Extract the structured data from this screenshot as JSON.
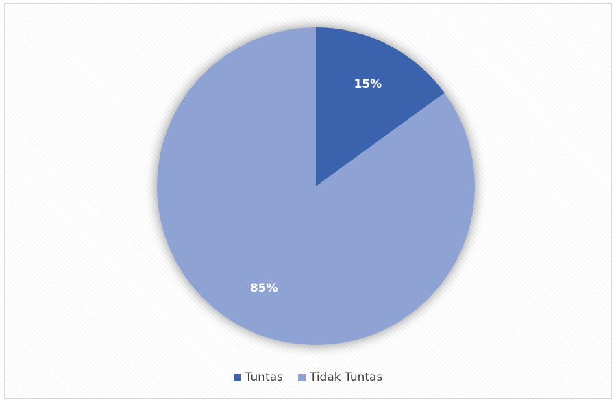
{
  "chart_data": {
    "type": "pie",
    "title": "",
    "categories": [
      "Tuntas",
      "Tidak Tuntas"
    ],
    "values": [
      15,
      85
    ],
    "data_labels": [
      "15%",
      "85%"
    ],
    "colors": [
      "#3b63ad",
      "#8fa2d4"
    ],
    "legend_position": "bottom",
    "start_angle_degrees": 0,
    "direction": "clockwise"
  },
  "legend": {
    "items": [
      {
        "label": "Tuntas",
        "color": "#3b63ad"
      },
      {
        "label": "Tidak Tuntas",
        "color": "#8fa2d4"
      }
    ]
  }
}
